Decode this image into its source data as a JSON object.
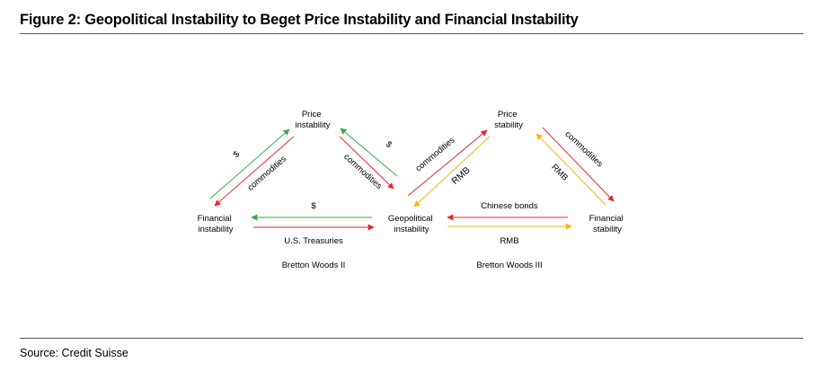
{
  "figure": {
    "title": "Figure 2: Geopolitical Instability to Beget Price Instability and Financial Instability",
    "source": "Source: Credit Suisse"
  },
  "colors": {
    "green": "#3aa845",
    "red": "#e8262b",
    "yellow": "#f5b31a",
    "rule": "#555555"
  },
  "left_system": {
    "label": "Bretton Woods II",
    "nodes": {
      "price": [
        "Price",
        "instability"
      ],
      "financial": [
        "Financial",
        "instability"
      ],
      "geo": [
        "Geopolitical",
        "instability"
      ]
    },
    "flows": {
      "up_left_green": "$",
      "up_left_red": "commodities",
      "right_green": "$",
      "right_red": "commodities",
      "bottom_top": "$",
      "bottom_bottom": "U.S. Treasuries"
    }
  },
  "right_system": {
    "label": "Bretton Woods III",
    "nodes": {
      "price": [
        "Price",
        "stability"
      ],
      "financial": [
        "Financial",
        "stability"
      ]
    },
    "flows": {
      "up_left_red": "commodities",
      "up_left_yellow": "RMB",
      "right_red": "commodities",
      "right_yellow": "RMB",
      "bottom_top": "Chinese bonds",
      "bottom_bottom": "RMB"
    }
  }
}
